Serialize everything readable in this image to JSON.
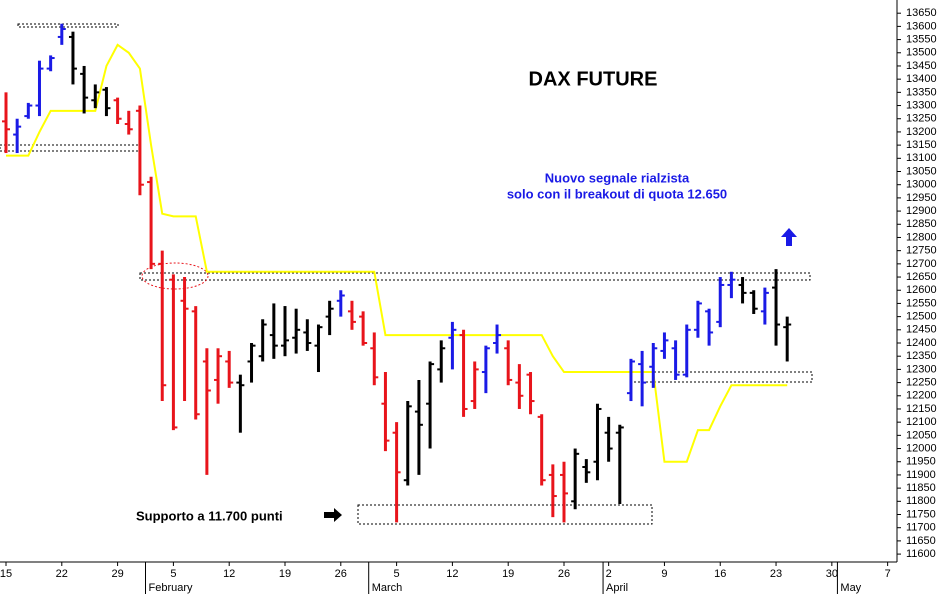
{
  "chart_data": {
    "type": "ohlc",
    "title": "DAX FUTURE",
    "annotations": [
      "Nuovo segnale rialzista",
      "solo con il breakout di quota 12.650",
      "Supporto a 11.700 punti"
    ],
    "months": [
      "February",
      "March",
      "April",
      "May"
    ],
    "categories": [
      "15",
      null,
      null,
      null,
      null,
      "22",
      null,
      null,
      null,
      null,
      "29",
      null,
      null,
      null,
      null,
      "5",
      null,
      null,
      null,
      null,
      "12",
      null,
      null,
      null,
      null,
      "19",
      null,
      null,
      null,
      null,
      "26",
      null,
      null,
      null,
      null,
      "5",
      null,
      null,
      null,
      null,
      "12",
      null,
      null,
      null,
      null,
      "19",
      null,
      null,
      null,
      null,
      "26",
      null,
      null,
      null,
      "2",
      null,
      null,
      null,
      null,
      "9",
      null,
      null,
      null,
      null,
      "16",
      null,
      null,
      null,
      null,
      "23",
      null,
      null,
      null,
      null,
      "30",
      null,
      null,
      null,
      null,
      "7"
    ],
    "open": [
      13240,
      13190,
      13260,
      13300,
      13440,
      13560,
      13560,
      13420,
      13320,
      13360,
      13320,
      13230,
      13280,
      13010,
      12700,
      12640,
      12560,
      12520,
      12330,
      12260,
      12330,
      12250,
      12330,
      12350,
      12430,
      12390,
      12420,
      12440,
      12390,
      12500,
      12560,
      12520,
      12500,
      12380,
      12170,
      12060,
      11880,
      12140,
      12170,
      12300,
      12420,
      12430,
      12180,
      12290,
      12400,
      12380,
      12250,
      12280,
      12120,
      11900,
      11900,
      11800,
      11930,
      11950,
      12060,
      12060,
      12210,
      12320,
      12310,
      12370,
      12380,
      12280,
      12450,
      12520,
      12480,
      12620,
      12620,
      12590,
      12520,
      12610,
      12460,
      null,
      null,
      null,
      null,
      null,
      null,
      null,
      null,
      null
    ],
    "high": [
      13350,
      13250,
      13310,
      13470,
      13490,
      13610,
      13580,
      13450,
      13380,
      13370,
      13330,
      13280,
      13300,
      13030,
      12750,
      12660,
      12650,
      12540,
      12380,
      12380,
      12370,
      12280,
      12400,
      12490,
      12550,
      12540,
      12530,
      12490,
      12470,
      12560,
      12600,
      12560,
      12520,
      12440,
      12290,
      12100,
      12180,
      12260,
      12330,
      12410,
      12480,
      12450,
      12330,
      12390,
      12470,
      12410,
      12320,
      12290,
      12130,
      11940,
      11950,
      12000,
      11960,
      12170,
      12120,
      12090,
      12340,
      12370,
      12400,
      12440,
      12410,
      12470,
      12560,
      12530,
      12650,
      12670,
      12650,
      12600,
      12610,
      12680,
      12500,
      null,
      null,
      null,
      null,
      null,
      null,
      null,
      null,
      null
    ],
    "low": [
      13120,
      13120,
      13250,
      13260,
      13430,
      13530,
      13380,
      13270,
      13290,
      13260,
      13230,
      13190,
      12960,
      12680,
      12180,
      12070,
      12180,
      12110,
      11900,
      12170,
      12230,
      12060,
      12250,
      12330,
      12340,
      12350,
      12360,
      12370,
      12290,
      12430,
      12500,
      12450,
      12390,
      12240,
      11990,
      11720,
      11860,
      11900,
      12000,
      12250,
      12300,
      12120,
      12150,
      12210,
      12360,
      12240,
      12150,
      12130,
      11860,
      11740,
      11720,
      11770,
      11870,
      11880,
      11950,
      11790,
      12180,
      12160,
      12230,
      12340,
      12260,
      12270,
      12420,
      12390,
      12460,
      12570,
      12550,
      12510,
      12470,
      12390,
      12330,
      null,
      null,
      null,
      null,
      null,
      null,
      null,
      null,
      null
    ],
    "close": [
      13210,
      13220,
      13300,
      13440,
      13480,
      13590,
      13440,
      13330,
      13350,
      13290,
      13250,
      13210,
      13000,
      12700,
      12240,
      12080,
      12530,
      12130,
      12220,
      12350,
      12250,
      12240,
      12390,
      12470,
      12390,
      12410,
      12450,
      12400,
      12460,
      12530,
      12580,
      12480,
      12400,
      12270,
      12030,
      11910,
      12160,
      12090,
      12320,
      12380,
      12450,
      12150,
      12300,
      12380,
      12430,
      12260,
      12200,
      12180,
      11880,
      11820,
      11830,
      11980,
      11910,
      12150,
      12000,
      12080,
      12330,
      12250,
      12380,
      12410,
      12280,
      12450,
      12550,
      12440,
      12620,
      12640,
      12590,
      12530,
      12590,
      12470,
      12470,
      null,
      null,
      null,
      null,
      null,
      null,
      null,
      null,
      null
    ],
    "bar_colors": [
      "#e8141b",
      "#1a1ae6",
      "#1a1ae6",
      "#1a1ae6",
      "#1a1ae6",
      "#1a1ae6",
      "#000000",
      "#000000",
      "#000000",
      "#000000",
      "#e8141b",
      "#e8141b",
      "#e8141b",
      "#e8141b",
      "#e8141b",
      "#e8141b",
      "#e8141b",
      "#e8141b",
      "#e8141b",
      "#e8141b",
      "#e8141b",
      "#000000",
      "#000000",
      "#000000",
      "#000000",
      "#000000",
      "#000000",
      "#000000",
      "#000000",
      "#000000",
      "#1a1ae6",
      "#e8141b",
      "#e8141b",
      "#e8141b",
      "#e8141b",
      "#e8141b",
      "#000000",
      "#000000",
      "#000000",
      "#000000",
      "#1a1ae6",
      "#e8141b",
      "#e8141b",
      "#1a1ae6",
      "#1a1ae6",
      "#e8141b",
      "#e8141b",
      "#e8141b",
      "#e8141b",
      "#e8141b",
      "#e8141b",
      "#000000",
      "#000000",
      "#000000",
      "#000000",
      "#000000",
      "#1a1ae6",
      "#1a1ae6",
      "#1a1ae6",
      "#1a1ae6",
      "#1a1ae6",
      "#1a1ae6",
      "#1a1ae6",
      "#1a1ae6",
      "#1a1ae6",
      "#1a1ae6",
      "#000000",
      "#000000",
      "#1a1ae6",
      "#000000",
      "#000000",
      null,
      null,
      null,
      null,
      null,
      null,
      null,
      null,
      null
    ],
    "line_color": "#ffff00",
    "line_values": [
      13110,
      13110,
      13110,
      13200,
      13280,
      13280,
      13280,
      13280,
      13280,
      13450,
      13530,
      13500,
      13440,
      13150,
      12890,
      12880,
      12880,
      12880,
      12670,
      12670,
      12670,
      12670,
      12670,
      12670,
      12670,
      12670,
      12670,
      12670,
      12670,
      12670,
      12670,
      12670,
      12670,
      12670,
      12430,
      12430,
      12430,
      12430,
      12430,
      12430,
      12430,
      12430,
      12430,
      12430,
      12430,
      12430,
      12430,
      12430,
      12430,
      12350,
      12290,
      12290,
      12290,
      12290,
      12290,
      12290,
      12290,
      12290,
      12290,
      11950,
      11950,
      11950,
      12070,
      12070,
      12160,
      12240,
      12240,
      12240,
      12240,
      12240,
      12240,
      null,
      null,
      null,
      null,
      null,
      null,
      null,
      null,
      null
    ],
    "ylim": [
      11570,
      13700
    ],
    "yticks": [
      11600,
      11650,
      11700,
      11750,
      11800,
      11850,
      11900,
      11950,
      12000,
      12050,
      12100,
      12150,
      12200,
      12250,
      12300,
      12350,
      12400,
      12450,
      12500,
      12550,
      12600,
      12650,
      12700,
      12750,
      12800,
      12850,
      12900,
      12950,
      13000,
      13050,
      13100,
      13150,
      13200,
      13250,
      13300,
      13350,
      13400,
      13450,
      13500,
      13550,
      13600,
      13650
    ],
    "grid": false
  }
}
